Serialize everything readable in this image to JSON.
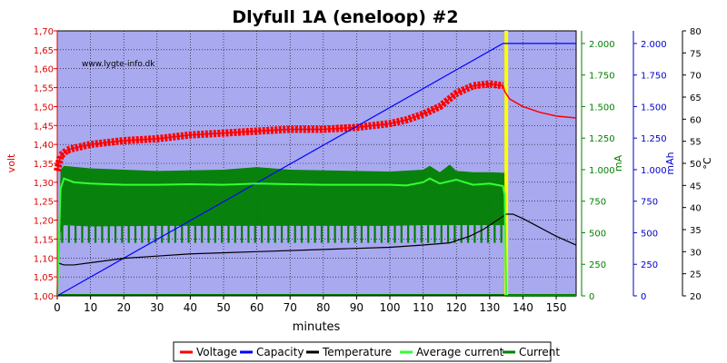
{
  "chart_data": {
    "type": "line",
    "title": "Dlyfull 1A (eneloop) #2",
    "watermark": "www.lygte-info.dk",
    "xlabel": "minutes",
    "xlim": [
      0,
      156
    ],
    "xticks": [
      0,
      10,
      20,
      30,
      40,
      50,
      60,
      70,
      80,
      90,
      100,
      110,
      120,
      130,
      140,
      150
    ],
    "axes": {
      "volt": {
        "label": "volt",
        "color": "#dd0000",
        "lim": [
          1.0,
          1.7
        ],
        "ticks": [
          "1,00",
          "1,05",
          "1,10",
          "1,15",
          "1,20",
          "1,25",
          "1,30",
          "1,35",
          "1,40",
          "1,45",
          "1,50",
          "1,55",
          "1,60",
          "1,65",
          "1,70"
        ]
      },
      "ma": {
        "label": "mA",
        "color": "#008000",
        "lim": [
          0,
          2100
        ],
        "ticks": [
          "0",
          "250",
          "500",
          "750",
          "1.000",
          "1.250",
          "1.500",
          "1.750",
          "2.000"
        ]
      },
      "mah": {
        "label": "mAh",
        "color": "#0000cc",
        "lim": [
          0,
          2100
        ],
        "ticks": [
          "0",
          "250",
          "500",
          "750",
          "1.000",
          "1.250",
          "1.500",
          "1.750",
          "2.000"
        ]
      },
      "temp": {
        "label": "°C",
        "color": "#000000",
        "lim": [
          20,
          80
        ],
        "ticks": [
          "20",
          "25",
          "30",
          "35",
          "40",
          "45",
          "50",
          "55",
          "60",
          "65",
          "70",
          "75",
          "80"
        ]
      }
    },
    "colors": {
      "plot_bg": "#a9a9f0",
      "voltage": "#ff0000",
      "capacity": "#0000ff",
      "temperature": "#000000",
      "average_current": "#33ff33",
      "current": "#008000",
      "end_marker": "#ffff00"
    },
    "end_marker_x": 135,
    "legend": {
      "placement": "bottom",
      "items": [
        "Voltage",
        "Capacity",
        "Temperature",
        "Average current",
        "Current"
      ]
    },
    "series": [
      {
        "name": "Voltage",
        "axis": "volt",
        "x": [
          0,
          1,
          3,
          5,
          10,
          20,
          30,
          40,
          50,
          60,
          70,
          80,
          90,
          100,
          105,
          110,
          115,
          120,
          125,
          130,
          134,
          134.5,
          136,
          140,
          145,
          150,
          156
        ],
        "y": [
          1.33,
          1.37,
          1.385,
          1.39,
          1.4,
          1.41,
          1.415,
          1.425,
          1.43,
          1.435,
          1.44,
          1.44,
          1.445,
          1.455,
          1.465,
          1.48,
          1.5,
          1.535,
          1.555,
          1.56,
          1.555,
          1.54,
          1.52,
          1.5,
          1.485,
          1.475,
          1.47
        ]
      },
      {
        "name": "Capacity",
        "axis": "mah",
        "x": [
          0,
          134,
          135,
          156
        ],
        "y": [
          0,
          2000,
          2000,
          2000
        ]
      },
      {
        "name": "Temperature",
        "axis": "temp",
        "x": [
          0,
          2,
          5,
          10,
          20,
          30,
          40,
          60,
          80,
          100,
          110,
          118,
          124,
          128,
          132,
          135,
          137,
          140,
          145,
          150,
          156
        ],
        "y": [
          27.5,
          27,
          27,
          27.5,
          28.5,
          29,
          29.5,
          30,
          30.5,
          31,
          31.5,
          32,
          33.5,
          35,
          37,
          38.5,
          38.5,
          37.5,
          35.5,
          33.5,
          31.5
        ]
      },
      {
        "name": "Average current",
        "axis": "ma",
        "x": [
          0,
          1,
          2,
          5,
          10,
          20,
          30,
          40,
          50,
          60,
          70,
          80,
          90,
          100,
          105,
          110,
          112,
          115,
          120,
          125,
          130,
          134,
          134.5,
          135,
          156
        ],
        "y": [
          0,
          850,
          930,
          900,
          890,
          880,
          880,
          885,
          880,
          890,
          885,
          880,
          880,
          880,
          875,
          900,
          930,
          890,
          920,
          880,
          890,
          870,
          800,
          0,
          0
        ]
      },
      {
        "name": "Current",
        "axis": "ma",
        "x": [
          0,
          1,
          2,
          10,
          30,
          50,
          60,
          70,
          90,
          100,
          110,
          112,
          115,
          118,
          120,
          125,
          130,
          134.5,
          135,
          156
        ],
        "y_max": [
          0,
          1000,
          1030,
          1010,
          990,
          1000,
          1020,
          1000,
          990,
          985,
          1000,
          1030,
          980,
          1040,
          990,
          980,
          980,
          975,
          0,
          0
        ],
        "y_min": [
          0,
          500,
          560,
          550,
          555,
          555,
          555,
          555,
          555,
          555,
          560,
          560,
          560,
          560,
          560,
          560,
          560,
          560,
          0,
          0
        ],
        "y_low": [
          0,
          420,
          420,
          420,
          420,
          420,
          420,
          420,
          420,
          420,
          420,
          420,
          420,
          420,
          420,
          420,
          420,
          420,
          0,
          0
        ]
      }
    ]
  }
}
